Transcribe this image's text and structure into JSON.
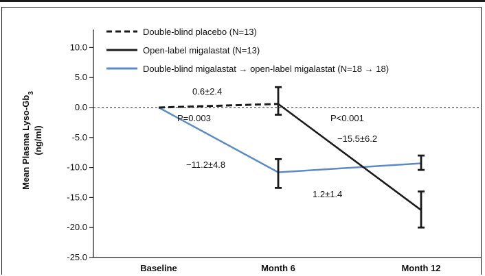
{
  "chart_data": {
    "type": "line",
    "categories": [
      "Baseline",
      "Month 6",
      "Month 12"
    ],
    "ylabel_line1": "Mean Plasma Lyso-Gb",
    "ylabel_sub": "3",
    "ylabel_line2": "(ng/ml)",
    "ylim": [
      -25.0,
      13.0
    ],
    "yticks": [
      10.0,
      5.0,
      0.0,
      -5.0,
      -10.0,
      -15.0,
      -20.0,
      -25.0
    ],
    "ytick_labels": [
      "10.0",
      "5.0",
      "0.0",
      "-5.0",
      "-10.0",
      "-15.0",
      "-20.0",
      "-25.0"
    ],
    "reference_line": 0.0,
    "series": [
      {
        "name": "Double-blind placebo (N=13)",
        "style": "dashed",
        "color": "#1a1a1a",
        "points": [
          [
            0,
            0.0
          ],
          [
            1,
            0.6
          ]
        ],
        "error": [
          null,
          [
            -1.2,
            3.4
          ]
        ]
      },
      {
        "name": "Open-label migalastat (N=13)",
        "style": "solid",
        "color": "#1a1a1a",
        "points": [
          [
            1,
            0.6
          ],
          [
            2,
            -17.1
          ]
        ],
        "error": [
          null,
          [
            -20.0,
            -14.0
          ]
        ]
      },
      {
        "name": "Double-blind migalastat → open-label migalastat (N=18 → 18)",
        "style": "solid",
        "color": "#5b8ac6",
        "points": [
          [
            0,
            0.0
          ],
          [
            1,
            -10.8
          ],
          [
            2,
            -9.3
          ]
        ],
        "error": [
          null,
          [
            -13.4,
            -8.6
          ],
          [
            -10.4,
            -8.0
          ]
        ]
      }
    ],
    "annotations": {
      "a1": "0.6±2.4",
      "a2": "P=0.003",
      "a3": "P<0.001",
      "a4": "−15.5±6.2",
      "a5": "−11.2±4.8",
      "a6": "1.2±1.4"
    }
  }
}
